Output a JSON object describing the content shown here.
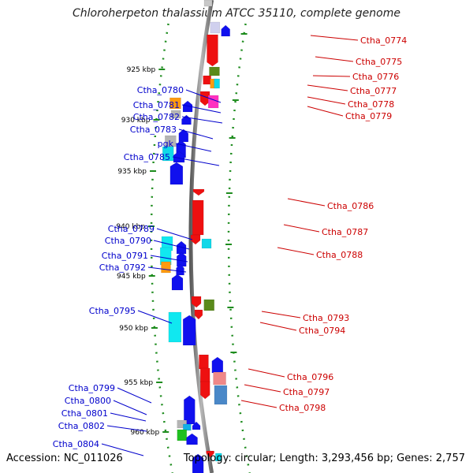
{
  "title": "Chloroherpeton thalassium ATCC 35110, complete genome",
  "accession": "Accession: NC_011026",
  "summary": "Topology: circular; Length: 3,293,456 bp; Genes: 2,757",
  "colors": {
    "backbone": "#8c8c8c",
    "plus_strand_label": "#0000cc",
    "minus_strand_label": "#cc0000",
    "ticks": "#1e8c1e",
    "axis_text": "#000000"
  },
  "scale_labels": [
    "925 kbp",
    "930 kbp",
    "935 kbp",
    "940 kbp",
    "945 kbp",
    "950 kbp",
    "955 kbp",
    "960 kbp"
  ],
  "left_gene_labels": [
    "Ctha_0780",
    "Ctha_0781",
    "Ctha_0782",
    "Ctha_0783",
    "pgk",
    "Ctha_0785",
    "Ctha_0789",
    "Ctha_0790",
    "Ctha_0791",
    "Ctha_0792",
    "Ctha_0795",
    "Ctha_0799",
    "Ctha_0800",
    "Ctha_0801",
    "Ctha_0802",
    "Ctha_0804"
  ],
  "right_gene_labels": [
    "Ctha_0774",
    "Ctha_0775",
    "Ctha_0776",
    "Ctha_0777",
    "Ctha_0778",
    "Ctha_0779",
    "Ctha_0786",
    "Ctha_0787",
    "Ctha_0788",
    "Ctha_0793",
    "Ctha_0794",
    "Ctha_0796",
    "Ctha_0797",
    "Ctha_0798"
  ]
}
